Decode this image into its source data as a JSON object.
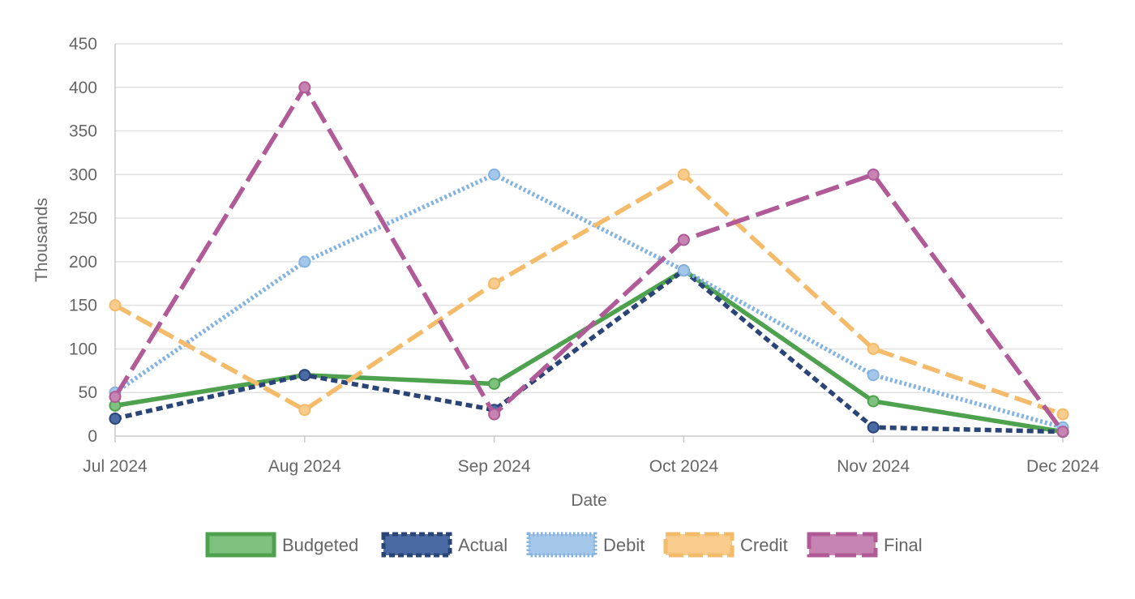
{
  "chart_data": {
    "type": "line",
    "xlabel": "Date",
    "ylabel": "Thousands",
    "categories": [
      "Jul 2024",
      "Aug 2024",
      "Sep 2024",
      "Oct 2024",
      "Nov 2024",
      "Dec 2024"
    ],
    "ylim": [
      0,
      450
    ],
    "yticks": [
      0,
      50,
      100,
      150,
      200,
      250,
      300,
      350,
      400,
      450
    ],
    "grid": true,
    "legend_position": "bottom",
    "series": [
      {
        "name": "Budgeted",
        "values": [
          35,
          70,
          60,
          190,
          40,
          5
        ],
        "color": "#4ea24e",
        "fill": "#7fc27f",
        "dash": "solid"
      },
      {
        "name": "Actual",
        "values": [
          20,
          70,
          30,
          190,
          10,
          5
        ],
        "color": "#2b4478",
        "fill": "#4a6aa3",
        "dash": "dashed"
      },
      {
        "name": "Debit",
        "values": [
          50,
          200,
          300,
          190,
          70,
          10
        ],
        "color": "#85b4e0",
        "fill": "#a5c7ea",
        "dash": "dotted"
      },
      {
        "name": "Credit",
        "values": [
          150,
          30,
          175,
          300,
          100,
          25
        ],
        "color": "#f3bb6a",
        "fill": "#f7cc8d",
        "dash": "long-dash"
      },
      {
        "name": "Final",
        "values": [
          45,
          400,
          25,
          225,
          300,
          5
        ],
        "color": "#b05a97",
        "fill": "#c684b2",
        "dash": "long-dash-gap"
      }
    ]
  }
}
